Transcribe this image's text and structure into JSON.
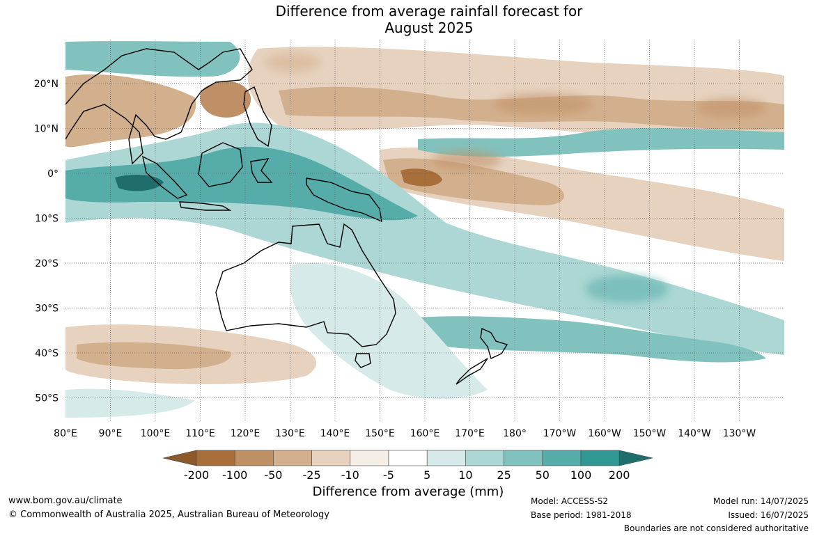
{
  "title": {
    "line1": "Difference from average rainfall forecast for",
    "line2": "August 2025"
  },
  "map": {
    "lat_labels": [
      "20°N",
      "10°N",
      "0°",
      "10°S",
      "20°S",
      "30°S",
      "40°S",
      "50°S"
    ],
    "lon_labels": [
      "80°E",
      "90°E",
      "100°E",
      "110°E",
      "120°E",
      "130°E",
      "140°E",
      "150°E",
      "160°E",
      "170°E",
      "180°",
      "170°W",
      "160°W",
      "150°W",
      "140°W",
      "130°W"
    ]
  },
  "colorbar": {
    "title": "Difference from average (mm)",
    "ticks": [
      "-200",
      "-100",
      "-50",
      "-25",
      "-10",
      "-5",
      "5",
      "10",
      "25",
      "50",
      "100",
      "200"
    ],
    "colors": [
      "#8c5a2a",
      "#a86f3a",
      "#bf9066",
      "#d3b08d",
      "#e6d2bf",
      "#f4eee6",
      "#ffffff",
      "#d6ebe9",
      "#acd7d4",
      "#82c2be",
      "#55aca8",
      "#2f9893",
      "#1f6e6b"
    ]
  },
  "footer": {
    "url": "www.bom.gov.au/climate",
    "copyright": "© Commonwealth of Australia 2025, Australian Bureau of Meteorology",
    "model": "Model: ACCESS-S2",
    "base_period": "Base period: 1981-2018",
    "model_run": "Model run: 14/07/2025",
    "issued": "Issued: 16/07/2025",
    "disclaimer": "Boundaries are not considered authoritative"
  }
}
